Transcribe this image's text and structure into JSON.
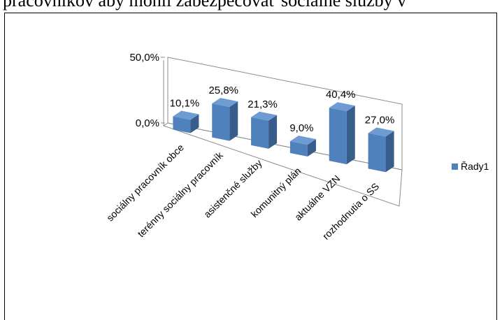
{
  "caption": "pracovníkov aby mohli zabezpečovať sociálne služby v",
  "chart_data": {
    "type": "bar",
    "style": "3d-column",
    "categories": [
      "sociálny pracovník obce",
      "terénny sociálny pracovník",
      "asistenčné služby",
      "komunitný plán",
      "aktuálne VZN",
      "rozhodnutia o SS"
    ],
    "series": [
      {
        "name": "Řady1",
        "values": [
          10.1,
          25.8,
          21.3,
          9.0,
          40.4,
          27.0
        ]
      }
    ],
    "data_labels": [
      "10,1%",
      "25,8%",
      "21,3%",
      "9,0%",
      "40,4%",
      "27,0%"
    ],
    "y_ticks": [
      "0,0%",
      "50,0%"
    ],
    "ylim": [
      0,
      50
    ],
    "legend_position": "right",
    "colors": {
      "bar_front": "#4F81BD",
      "bar_side": "#385D8A",
      "bar_top": "#6E9BD1",
      "axis": "#000000"
    }
  }
}
